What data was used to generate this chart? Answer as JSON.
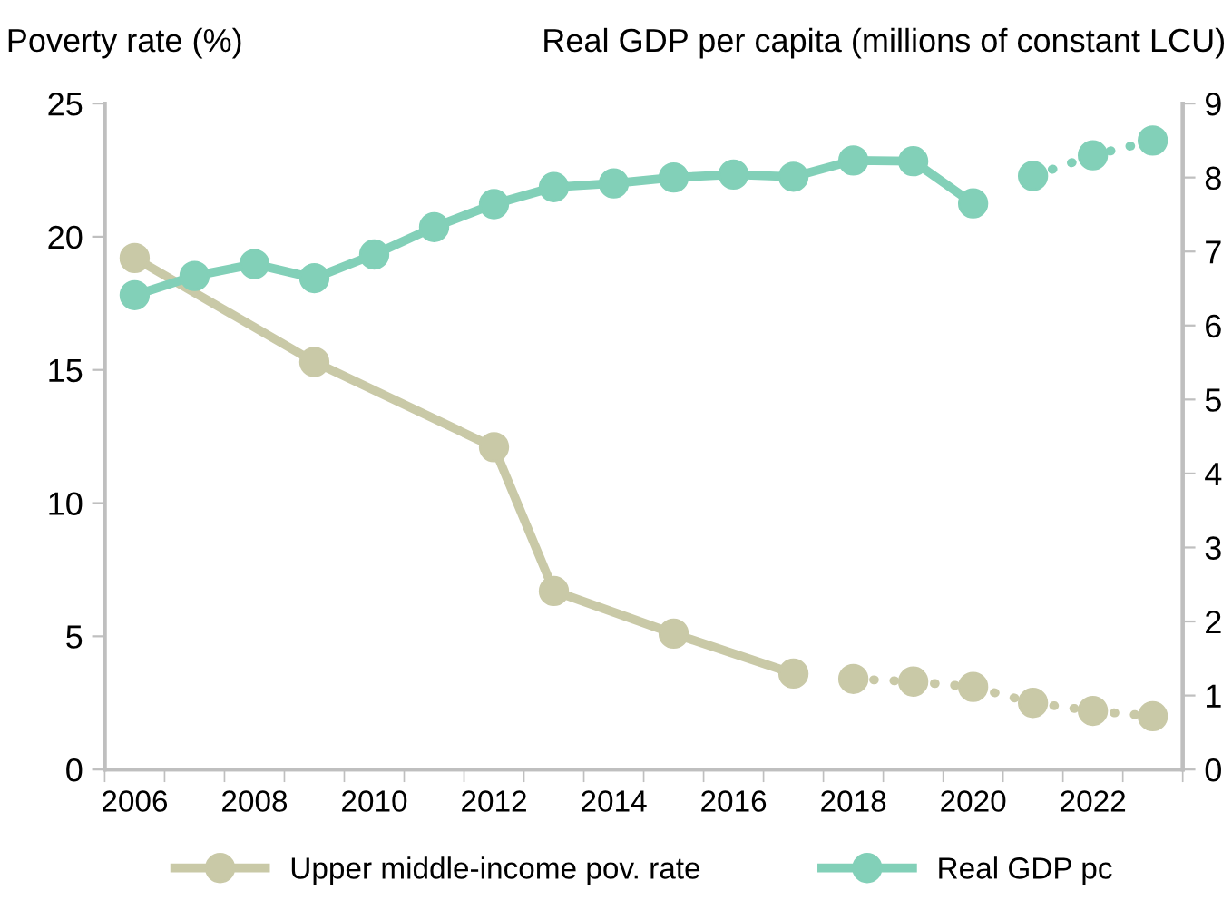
{
  "chart_data": {
    "type": "line",
    "ylabel": "Poverty rate (%)",
    "y2label": "Real GDP per capita (millions of constant LCU)",
    "categories": [
      "2006",
      null,
      "2008",
      null,
      "2010",
      null,
      "2012",
      null,
      "2014",
      null,
      "2016",
      null,
      "2018",
      null,
      "2020",
      null,
      "2022",
      null
    ],
    "series": [
      {
        "name": "Upper middle-income pov. rate",
        "color": "#c9c9a7",
        "line_style": "solid",
        "values": [
          19.2,
          null,
          null,
          15.3,
          null,
          null,
          12.1,
          6.7,
          null,
          5.1,
          null,
          3.6,
          null,
          null,
          null,
          null,
          null,
          null
        ]
      },
      {
        "color": "#c9c9a7",
        "line_style": "dotted",
        "values": [
          null,
          null,
          null,
          null,
          null,
          null,
          null,
          null,
          null,
          null,
          null,
          null,
          3.4,
          3.3,
          3.1,
          2.5,
          2.2,
          2.0
        ]
      },
      {
        "name": "Real GDP pc",
        "color": "#82d0b8",
        "axis": "y2",
        "line_style": "solid",
        "values": [
          6.41,
          6.67,
          6.83,
          6.64,
          6.96,
          7.33,
          7.64,
          7.87,
          7.92,
          8.0,
          8.04,
          8.01,
          8.23,
          8.22,
          7.65,
          null,
          null,
          null
        ]
      },
      {
        "color": "#82d0b8",
        "axis": "y2",
        "line_style": "dotted",
        "values": [
          null,
          null,
          null,
          null,
          null,
          null,
          null,
          null,
          null,
          null,
          null,
          null,
          null,
          null,
          null,
          8.02,
          8.3,
          8.5
        ]
      }
    ],
    "ylim": [
      0,
      25
    ],
    "yticks": [
      0,
      5,
      10,
      15,
      20,
      25
    ],
    "y2lim": [
      0,
      9
    ],
    "y2ticks": [
      0,
      1,
      2,
      3,
      4,
      5,
      6,
      7,
      8,
      9
    ],
    "marker": "circle",
    "grid": false,
    "legend": "bottom"
  }
}
